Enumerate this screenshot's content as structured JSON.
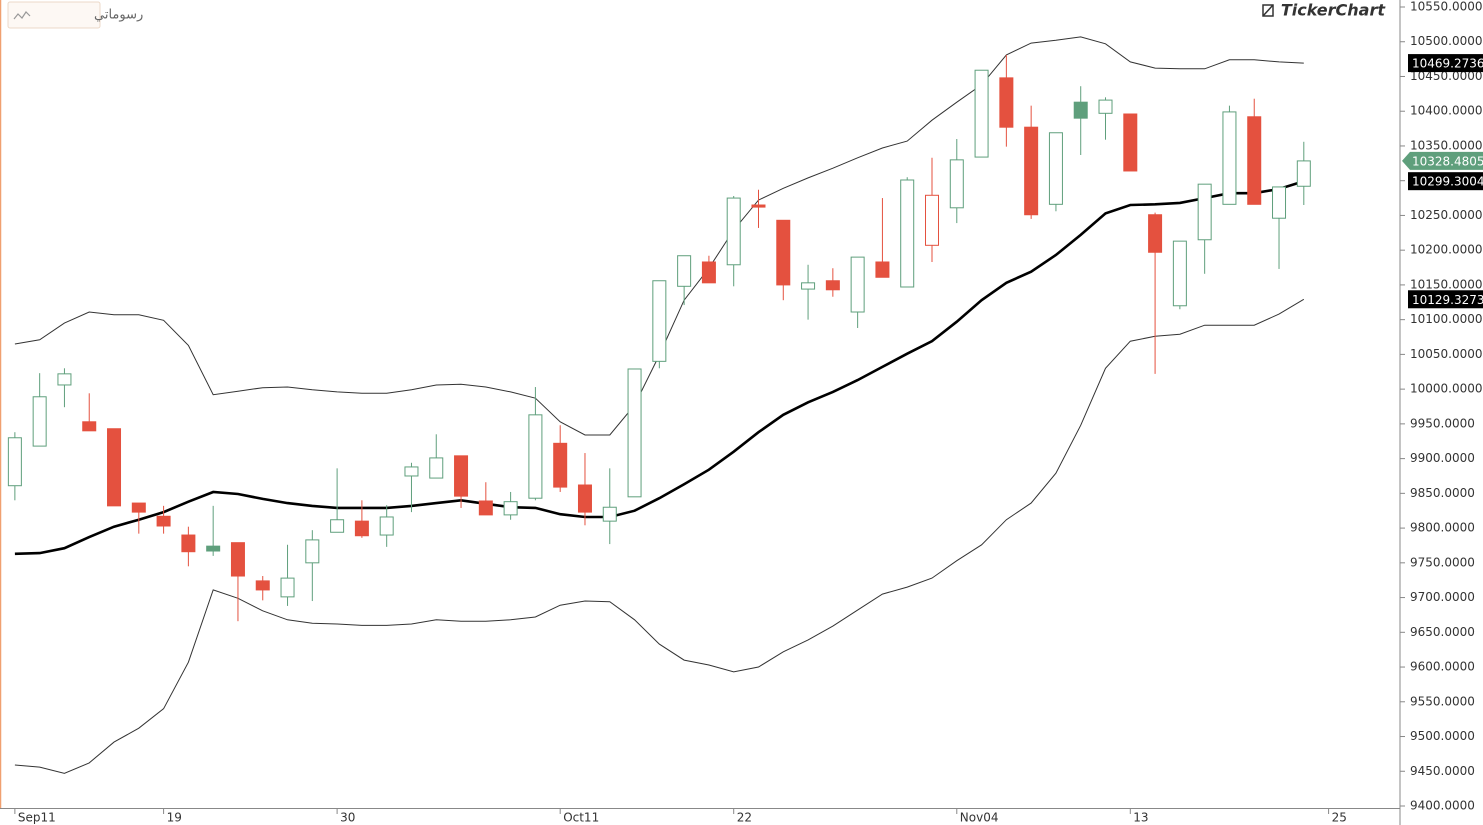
{
  "toolbar": {
    "drawings_button": "رسوماتي",
    "logo": "TickerChart"
  },
  "chart_data": {
    "type": "candlestick",
    "xlim": [
      -0.6,
      55.8
    ],
    "ylim": [
      9400,
      10550
    ],
    "xticks": [
      {
        "value": 0,
        "label": "Sep11"
      },
      {
        "value": 6,
        "label": "19"
      },
      {
        "value": 13,
        "label": "30"
      },
      {
        "value": 22,
        "label": "Oct11"
      },
      {
        "value": 29,
        "label": "22"
      },
      {
        "value": 38,
        "label": "Nov04"
      },
      {
        "value": 45,
        "label": "13"
      },
      {
        "value": 53,
        "label": "25"
      }
    ],
    "yticks": [
      {
        "value": 10550,
        "label": "10550.0000"
      },
      {
        "value": 10500,
        "label": "10500.0000"
      },
      {
        "value": 10450,
        "label": "10450.0000"
      },
      {
        "value": 10400,
        "label": "10400.0000"
      },
      {
        "value": 10350,
        "label": "10350.0000"
      },
      {
        "value": 10300,
        "label": "10300.0000"
      },
      {
        "value": 10250,
        "label": "10250.0000"
      },
      {
        "value": 10200,
        "label": "10200.0000"
      },
      {
        "value": 10150,
        "label": "10150.0000"
      },
      {
        "value": 10100,
        "label": "10100.0000"
      },
      {
        "value": 10050,
        "label": "10050.0000"
      },
      {
        "value": 10000,
        "label": "10000.0000"
      },
      {
        "value": 9950,
        "label": "9950.0000"
      },
      {
        "value": 9900,
        "label": "9900.0000"
      },
      {
        "value": 9850,
        "label": "9850.0000"
      },
      {
        "value": 9800,
        "label": "9800.0000"
      },
      {
        "value": 9750,
        "label": "9750.0000"
      },
      {
        "value": 9700,
        "label": "9700.0000"
      },
      {
        "value": 9650,
        "label": "9650.0000"
      },
      {
        "value": 9600,
        "label": "9600.0000"
      },
      {
        "value": 9550,
        "label": "9550.0000"
      },
      {
        "value": 9500,
        "label": "9500.0000"
      },
      {
        "value": 9450,
        "label": "9450.0000"
      },
      {
        "value": 9400,
        "label": "9400.0000"
      }
    ],
    "colors": {
      "up": "#5f9f7c",
      "down": "#e4513f",
      "band": "#333333",
      "middle": "#000000"
    },
    "open": [
      9861,
      9918,
      10006,
      9953,
      9943,
      9836,
      9817,
      9790,
      9774,
      9779,
      9724,
      9701,
      9750,
      9794,
      9810,
      9790,
      9875,
      9872,
      9904,
      9839,
      9819,
      9843,
      9922,
      9862,
      9810,
      9845,
      10040,
      10148,
      10183,
      10179,
      10265,
      10243,
      10144,
      10156,
      10111,
      10183,
      10147,
      10207,
      10261,
      10334,
      10448,
      10377,
      10266,
      10413,
      10397,
      10396,
      10251,
      10120,
      10215,
      10266,
      10392,
      10246,
      10292
    ],
    "high": [
      9938,
      10023,
      10030,
      9994,
      9943,
      9836,
      9832,
      9802,
      9832,
      9779,
      9731,
      9776,
      9797,
      9886,
      9840,
      9833,
      9894,
      9935,
      9904,
      9866,
      9852,
      10003,
      9948,
      9908,
      9886,
      10029,
      10156,
      10192,
      10192,
      10278,
      10287,
      10243,
      10179,
      10174,
      10190,
      10275,
      10305,
      10333,
      10360,
      10459,
      10481,
      10408,
      10369,
      10436,
      10420,
      10396,
      10254,
      10213,
      10295,
      10408,
      10418,
      10291,
      10356
    ],
    "low": [
      9840,
      9918,
      9974,
      9940,
      9832,
      9792,
      9792,
      9745,
      9760,
      9666,
      9696,
      9688,
      9695,
      9794,
      9786,
      9773,
      9823,
      9872,
      9829,
      9819,
      9812,
      9840,
      9852,
      9804,
      9777,
      9845,
      10030,
      10121,
      10153,
      10148,
      10232,
      10128,
      10100,
      10133,
      10088,
      10161,
      10147,
      10183,
      10239,
      10334,
      10349,
      10245,
      10256,
      10337,
      10359,
      10314,
      10022,
      10115,
      10166,
      10266,
      10266,
      10173,
      10265
    ],
    "close": [
      9930,
      9989,
      10022,
      9940,
      9832,
      9823,
      9803,
      9766,
      9767,
      9731,
      9711,
      9728,
      9783,
      9812,
      9789,
      9816,
      9888,
      9901,
      9846,
      9819,
      9838,
      9963,
      9859,
      9823,
      9830,
      10029,
      10156,
      10192,
      10153,
      10275,
      10262,
      10150,
      10153,
      10143,
      10190,
      10161,
      10301,
      10279,
      10330,
      10459,
      10377,
      10251,
      10369,
      10390,
      10416,
      10314,
      10197,
      10213,
      10295,
      10399,
      10266,
      10291,
      10328.4805
    ],
    "bands": {
      "upper": [
        10065,
        10071,
        10095,
        10111,
        10107,
        10107,
        10099,
        10063,
        9992,
        9997,
        10002,
        10003,
        9999,
        9996,
        9994,
        9994,
        9999,
        10006,
        10007,
        10003,
        9996,
        9987,
        9953,
        9934,
        9934,
        9977,
        10049,
        10128,
        10174,
        10229,
        10272,
        10289,
        10304,
        10318,
        10333,
        10347,
        10357,
        10387,
        10413,
        10438,
        10481,
        10498,
        10502,
        10507,
        10497,
        10471,
        10462,
        10461,
        10461,
        10474,
        10474,
        10471,
        10469.2736
      ],
      "middle": [
        9763,
        9764,
        9771,
        9787,
        9802,
        9812,
        9823,
        9838,
        9852,
        9849,
        9842,
        9836,
        9832,
        9829,
        9829,
        9829,
        9832,
        9836,
        9840,
        9835,
        9830,
        9829,
        9820,
        9816,
        9816,
        9825,
        9843,
        9863,
        9884,
        9910,
        9938,
        9963,
        9981,
        9996,
        10013,
        10032,
        10051,
        10069,
        10097,
        10128,
        10153,
        10169,
        10193,
        10222,
        10253,
        10265,
        10266,
        10268,
        10275,
        10282,
        10282,
        10288,
        10299.3004
      ],
      "lower": [
        9459,
        9456,
        9447,
        9462,
        9492,
        9512,
        9540,
        9607,
        9711,
        9699,
        9681,
        9668,
        9663,
        9662,
        9660,
        9660,
        9662,
        9668,
        9666,
        9666,
        9668,
        9672,
        9689,
        9695,
        9694,
        9668,
        9633,
        9610,
        9603,
        9593,
        9600,
        9622,
        9639,
        9659,
        9682,
        9705,
        9715,
        9728,
        9753,
        9776,
        9812,
        9836,
        9879,
        9948,
        10030,
        10069,
        10076,
        10079,
        10092,
        10092,
        10092,
        10108,
        10129.3273
      ]
    }
  }
}
